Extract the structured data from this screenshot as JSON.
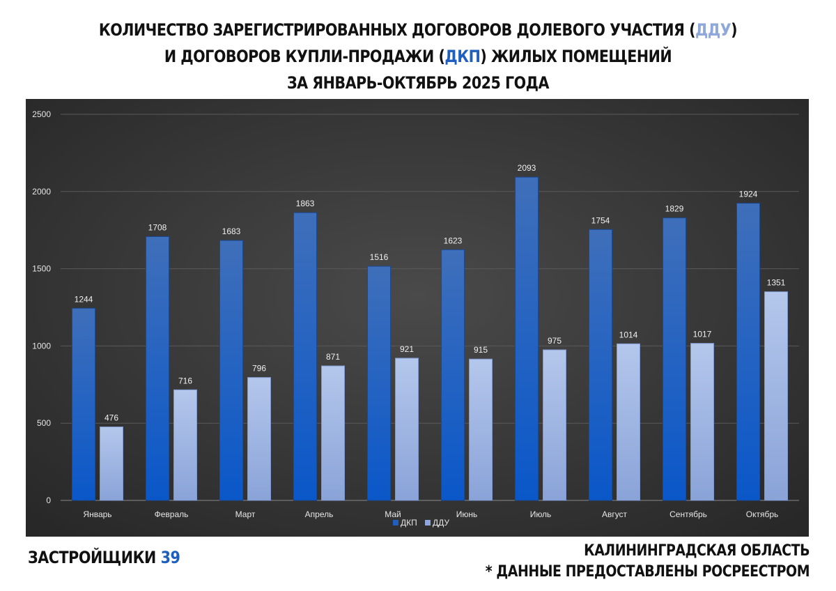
{
  "header": {
    "line1_pre": "КОЛИЧЕСТВО ЗАРЕГИСТРИРОВАННЫХ ДОГОВОРОВ ДОЛЕВОГО УЧАСТИЯ (",
    "line1_hl": "ДДУ",
    "line1_post": ")",
    "line2_pre": "И ДОГОВОРОВ КУПЛИ-ПРОДАЖИ (",
    "line2_hl": "ДКП",
    "line2_post": ") ЖИЛЫХ ПОМЕЩЕНИЙ",
    "line3": "ЗА ЯНВАРЬ-ОКТЯБРЬ 2025 ГОДА"
  },
  "footer": {
    "brand_text": "ЗАСТРОЙЩИКИ",
    "brand_num": "39",
    "region": "КАЛИНИНГРАДСКАЯ ОБЛАСТЬ",
    "source": "* ДАННЫЕ ПРЕДОСТАВЛЕНЫ РОСРЕЕСТРОМ"
  },
  "colors": {
    "dkp": "#1f5fbf",
    "ddu": "#8fa8dc",
    "chart_bg": "#3a3a3a"
  },
  "chart_data": {
    "type": "bar",
    "title": "",
    "xlabel": "",
    "ylabel": "",
    "ylim": [
      0,
      2500
    ],
    "yticks": [
      0,
      500,
      1000,
      1500,
      2000,
      2500
    ],
    "grid": true,
    "legend_position": "bottom",
    "categories": [
      "Январь",
      "Февраль",
      "Март",
      "Апрель",
      "Май",
      "Июнь",
      "Июль",
      "Август",
      "Сентябрь",
      "Октябрь"
    ],
    "series": [
      {
        "name": "ДКП",
        "color": "#1f5fbf",
        "values": [
          1244,
          1708,
          1683,
          1863,
          1516,
          1623,
          2093,
          1754,
          1829,
          1924
        ]
      },
      {
        "name": "ДДУ",
        "color": "#8fa8dc",
        "values": [
          476,
          716,
          796,
          871,
          921,
          915,
          975,
          1014,
          1017,
          1351
        ]
      }
    ]
  }
}
